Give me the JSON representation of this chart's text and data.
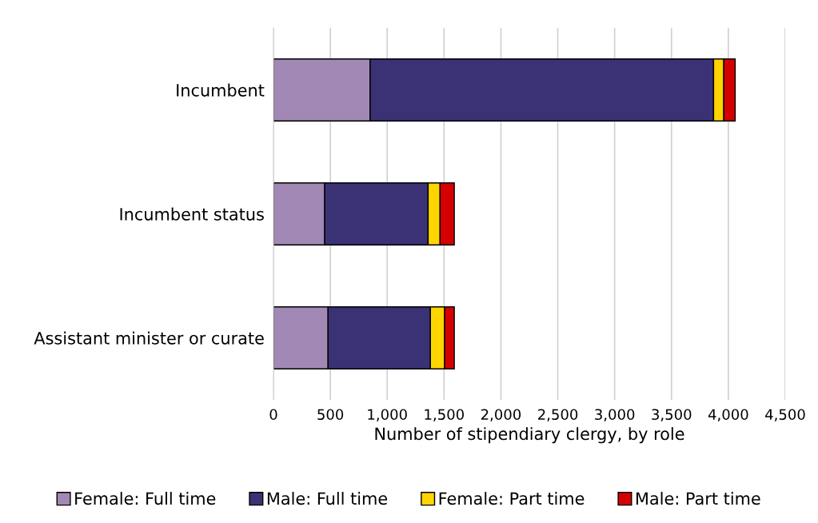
{
  "chart_data": {
    "type": "bar",
    "orientation": "horizontal",
    "stacked": true,
    "xlabel": "Number of stipendiary clergy, by role",
    "categories": [
      "Incumbent",
      "Incumbent status",
      "Assistant minister or curate"
    ],
    "series": [
      {
        "name": "Female: Full time",
        "color": "#a288b5",
        "values": [
          850,
          450,
          480
        ]
      },
      {
        "name": "Male: Full time",
        "color": "#3b3275",
        "values": [
          3020,
          910,
          900
        ]
      },
      {
        "name": "Female: Part time",
        "color": "#ffd500",
        "values": [
          90,
          105,
          125
        ]
      },
      {
        "name": "Male: Part time",
        "color": "#d50000",
        "values": [
          100,
          125,
          85
        ]
      }
    ],
    "xlim": [
      0,
      4500
    ],
    "xticks": [
      0,
      {
        "value": 500,
        "label": "500"
      },
      {
        "value": 1000,
        "label": "1,000"
      },
      {
        "value": 1500,
        "label": "1,500"
      },
      {
        "value": 2000,
        "label": "2,000"
      },
      {
        "value": 2500,
        "label": "2,500"
      },
      {
        "value": 3000,
        "label": "3,000"
      },
      {
        "value": 3500,
        "label": "3,500"
      },
      {
        "value": 4000,
        "label": "4,000"
      },
      {
        "value": 4500,
        "label": "4,500"
      }
    ],
    "grid": "x",
    "legend": "bottom"
  }
}
